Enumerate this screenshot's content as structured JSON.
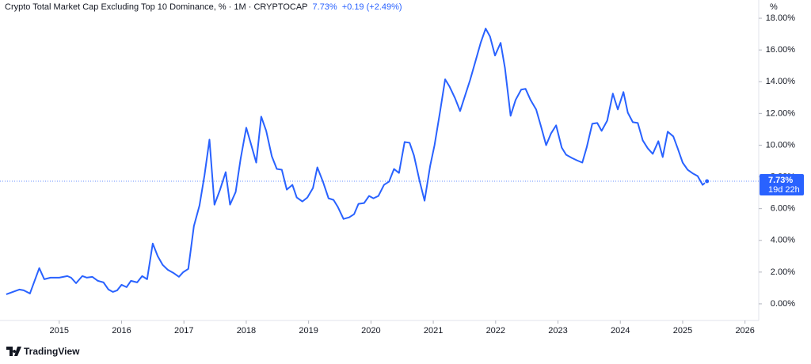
{
  "chart_data": {
    "type": "line",
    "title": "Crypto Total Market Cap Excluding Top 10 Dominance, % · 1M · CRYPTOCAP",
    "price": "7.73%",
    "change": "+0.19 (+2.49%)",
    "countdown": "19d 22h",
    "axis_unit": "%",
    "brand": "TradingView",
    "color": "#2962ff",
    "x": [
      2014.15,
      2014.36,
      2014.43,
      2014.53,
      2014.68,
      2014.76,
      2014.86,
      2015.0,
      2015.13,
      2015.19,
      2015.27,
      2015.37,
      2015.44,
      2015.53,
      2015.62,
      2015.71,
      2015.79,
      2015.86,
      2015.93,
      2016.0,
      2016.08,
      2016.15,
      2016.25,
      2016.33,
      2016.41,
      2016.5,
      2016.58,
      2016.66,
      2016.74,
      2016.83,
      2016.92,
      2016.99,
      2017.07,
      2017.16,
      2017.25,
      2017.33,
      2017.41,
      2017.49,
      2017.58,
      2017.67,
      2017.74,
      2017.83,
      2017.91,
      2018.0,
      2018.07,
      2018.16,
      2018.24,
      2018.32,
      2018.41,
      2018.49,
      2018.57,
      2018.65,
      2018.74,
      2018.81,
      2018.9,
      2018.98,
      2019.07,
      2019.14,
      2019.23,
      2019.32,
      2019.4,
      2019.47,
      2019.56,
      2019.65,
      2019.73,
      2019.8,
      2019.89,
      2019.97,
      2020.04,
      2020.12,
      2020.21,
      2020.29,
      2020.37,
      2020.45,
      2020.54,
      2020.62,
      2020.69,
      2020.78,
      2020.86,
      2020.95,
      2021.02,
      2021.11,
      2021.19,
      2021.26,
      2021.35,
      2021.43,
      2021.52,
      2021.59,
      2021.67,
      2021.76,
      2021.84,
      2021.91,
      2021.99,
      2022.08,
      2022.15,
      2022.24,
      2022.32,
      2022.41,
      2022.48,
      2022.56,
      2022.65,
      2022.73,
      2022.81,
      2022.89,
      2022.97,
      2023.06,
      2023.13,
      2023.22,
      2023.3,
      2023.39,
      2023.46,
      2023.55,
      2023.63,
      2023.7,
      2023.79,
      2023.88,
      2023.96,
      2024.05,
      2024.12,
      2024.2,
      2024.28,
      2024.36,
      2024.44,
      2024.52,
      2024.61,
      2024.68,
      2024.76,
      2024.85,
      2024.92,
      2025.0,
      2025.08,
      2025.17,
      2025.24,
      2025.32,
      2025.39
    ],
    "values": [
      0.6,
      0.9,
      0.85,
      0.65,
      2.25,
      1.55,
      1.65,
      1.65,
      1.75,
      1.65,
      1.3,
      1.75,
      1.65,
      1.7,
      1.45,
      1.35,
      0.9,
      0.75,
      0.85,
      1.2,
      1.05,
      1.45,
      1.35,
      1.75,
      1.55,
      3.8,
      3.0,
      2.45,
      2.15,
      1.95,
      1.7,
      2.0,
      2.2,
      4.9,
      6.2,
      8.1,
      10.35,
      6.25,
      7.2,
      8.3,
      6.25,
      7.05,
      9.15,
      11.1,
      10.15,
      8.9,
      11.8,
      10.9,
      9.3,
      8.5,
      8.45,
      7.2,
      7.5,
      6.7,
      6.45,
      6.7,
      7.3,
      8.6,
      7.7,
      6.65,
      6.55,
      6.1,
      5.35,
      5.45,
      5.65,
      6.3,
      6.35,
      6.8,
      6.65,
      6.8,
      7.5,
      7.7,
      8.5,
      8.25,
      10.2,
      10.15,
      9.35,
      7.75,
      6.5,
      8.7,
      10.0,
      12.15,
      14.15,
      13.7,
      12.95,
      12.15,
      13.25,
      14.1,
      15.2,
      16.45,
      17.35,
      16.85,
      15.65,
      16.45,
      14.85,
      11.85,
      12.85,
      13.5,
      13.55,
      12.85,
      12.25,
      11.15,
      10.0,
      10.75,
      11.25,
      9.85,
      9.4,
      9.2,
      9.05,
      8.9,
      9.85,
      11.35,
      11.4,
      10.9,
      11.55,
      13.25,
      12.25,
      13.35,
      12.05,
      11.45,
      11.4,
      10.3,
      9.8,
      9.45,
      10.25,
      9.25,
      10.85,
      10.55,
      9.8,
      8.9,
      8.45,
      8.2,
      8.05,
      7.5,
      7.73
    ],
    "xlim": [
      2014.05,
      2026.22
    ],
    "xticks": [
      2015,
      2016,
      2017,
      2018,
      2019,
      2020,
      2021,
      2022,
      2023,
      2024,
      2025,
      2026
    ],
    "ylim": [
      -1.05,
      19.15
    ],
    "yticks": [
      {
        "value": 0,
        "label": "0.00%"
      },
      {
        "value": 2,
        "label": "2.00%"
      },
      {
        "value": 4,
        "label": "4.00%"
      },
      {
        "value": 6,
        "label": "6.00%"
      },
      {
        "value": 8,
        "label": "8.00%"
      },
      {
        "value": 10,
        "label": "10.00%"
      },
      {
        "value": 12,
        "label": "12.00%"
      },
      {
        "value": 14,
        "label": "14.00%"
      },
      {
        "value": 16,
        "label": "16.00%"
      },
      {
        "value": 18,
        "label": "18.00%"
      }
    ]
  }
}
